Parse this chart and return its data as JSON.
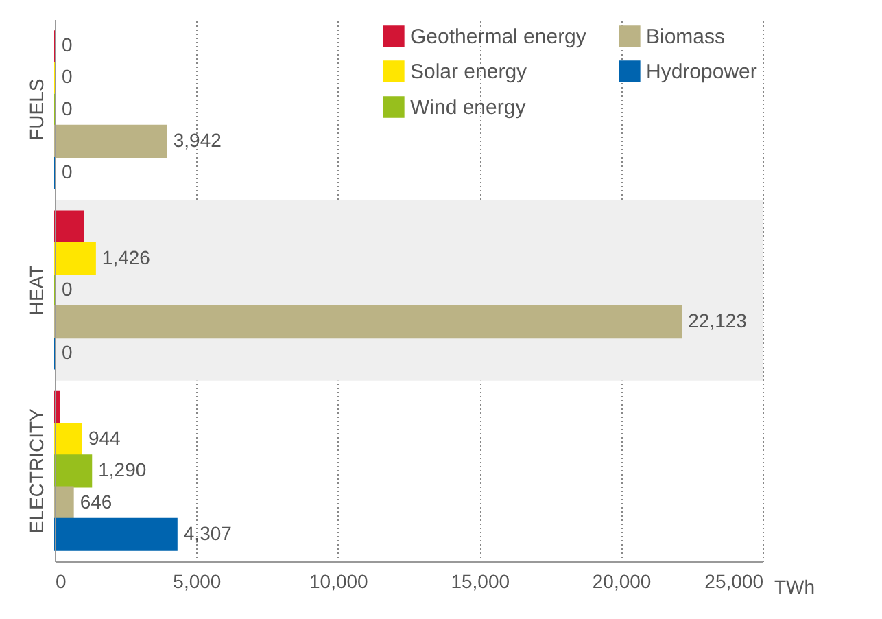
{
  "chart_data": {
    "type": "bar",
    "orientation": "horizontal",
    "xlabel": "TWh",
    "categories": [
      "FUELS",
      "HEAT",
      "ELECTRICITY"
    ],
    "series": [
      {
        "name": "Geothermal energy",
        "color": "#d21535",
        "values": [
          0,
          1000,
          150
        ],
        "value_labels": [
          "0",
          null,
          null
        ]
      },
      {
        "name": "Solar energy",
        "color": "#ffe600",
        "values": [
          0,
          1426,
          944
        ],
        "value_labels": [
          "0",
          "1,426",
          "944"
        ]
      },
      {
        "name": "Wind energy",
        "color": "#97bf1d",
        "values": [
          0,
          0,
          1290
        ],
        "value_labels": [
          "0",
          "0",
          "1,290"
        ]
      },
      {
        "name": "Biomass",
        "color": "#bbb385",
        "values": [
          3942,
          22123,
          646
        ],
        "value_labels": [
          "3,942",
          "22,123",
          "646"
        ]
      },
      {
        "name": "Hydropower",
        "color": "#0064af",
        "values": [
          0,
          0,
          4307
        ],
        "value_labels": [
          "0",
          "0",
          "4,307"
        ]
      }
    ],
    "xlim": [
      0,
      25000
    ],
    "xticks": [
      {
        "value": 0,
        "label": "0"
      },
      {
        "value": 5000,
        "label": "5,000"
      },
      {
        "value": 10000,
        "label": "10,000"
      },
      {
        "value": 15000,
        "label": "15,000"
      },
      {
        "value": 20000,
        "label": "20,000"
      },
      {
        "value": 25000,
        "label": "25,000"
      }
    ],
    "bands": [
      {
        "axis": "y",
        "from": "HEAT",
        "to": "HEAT",
        "color": "#efefef"
      }
    ],
    "grid": "x",
    "legend": "top right"
  }
}
